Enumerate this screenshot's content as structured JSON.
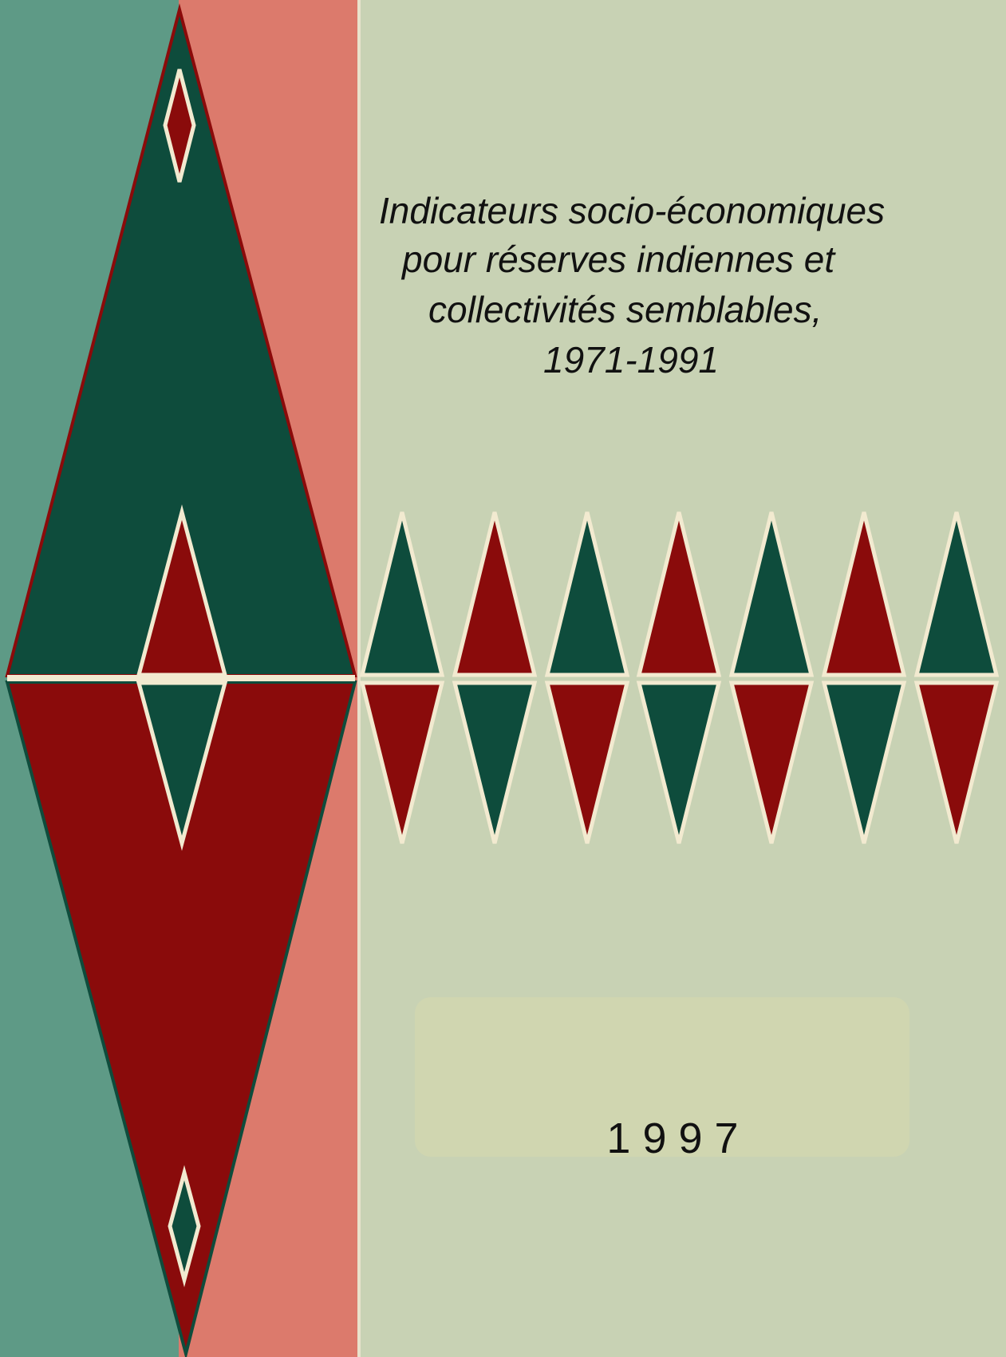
{
  "cover": {
    "title_lines": [
      "Indicateurs socio-économiques",
      "pour réserves indiennes et",
      "collectivités semblables,",
      "1971-1991"
    ],
    "year": "1 9 9 7"
  }
}
